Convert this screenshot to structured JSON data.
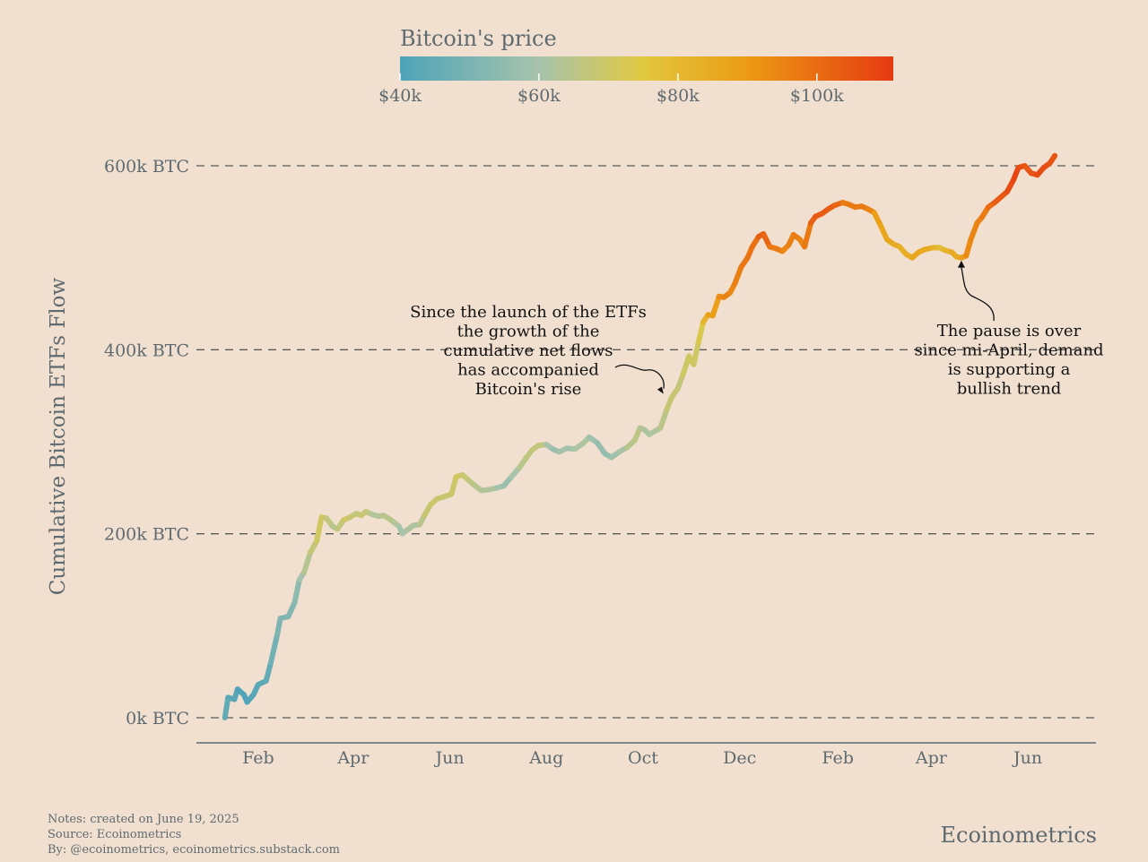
{
  "chart_data": {
    "type": "line",
    "colorbar": {
      "title": "Bitcoin's price",
      "tick_labels": [
        "$40k",
        "$60k",
        "$80k",
        "$100k"
      ],
      "tick_values": [
        40000,
        60000,
        80000,
        100000
      ],
      "range": [
        40000,
        111000
      ],
      "color_stops": [
        {
          "value": 40000,
          "color": "#4ea3b8"
        },
        {
          "value": 60000,
          "color": "#a7c3ac"
        },
        {
          "value": 75000,
          "color": "#e1c940"
        },
        {
          "value": 90000,
          "color": "#ec9a14"
        },
        {
          "value": 111000,
          "color": "#e63a12"
        }
      ]
    },
    "ylabel": "Cumulative Bitcoin ETFs Flow",
    "y_ticks": [
      {
        "value": 0,
        "label": "0k BTC"
      },
      {
        "value": 200000,
        "label": "200k BTC"
      },
      {
        "value": 400000,
        "label": "400k BTC"
      },
      {
        "value": 600000,
        "label": "600k BTC"
      }
    ],
    "ylim": [
      -28000,
      640000
    ],
    "xlim": [
      "2023-12-24",
      "2025-07-14"
    ],
    "x_ticks": [
      {
        "date": "2024-02-01",
        "label": "Feb"
      },
      {
        "date": "2024-04-01",
        "label": "Apr"
      },
      {
        "date": "2024-06-01",
        "label": "Jun"
      },
      {
        "date": "2024-08-01",
        "label": "Aug"
      },
      {
        "date": "2024-10-01",
        "label": "Oct"
      },
      {
        "date": "2024-12-01",
        "label": "Dec"
      },
      {
        "date": "2025-02-01",
        "label": "Feb"
      },
      {
        "date": "2025-04-01",
        "label": "Apr"
      },
      {
        "date": "2025-06-01",
        "label": "Jun"
      }
    ],
    "grid": "horizontal-dashed",
    "series": [
      {
        "points": [
          {
            "date": "2024-01-11",
            "btc": 0,
            "price": 46000
          },
          {
            "date": "2024-01-13",
            "btc": 22000,
            "price": 43000
          },
          {
            "date": "2024-01-17",
            "btc": 20000,
            "price": 42500
          },
          {
            "date": "2024-01-19",
            "btc": 31000,
            "price": 41500
          },
          {
            "date": "2024-01-23",
            "btc": 25000,
            "price": 40000
          },
          {
            "date": "2024-01-25",
            "btc": 17000,
            "price": 40500
          },
          {
            "date": "2024-01-29",
            "btc": 25000,
            "price": 42000
          },
          {
            "date": "2024-02-01",
            "btc": 36000,
            "price": 43000
          },
          {
            "date": "2024-02-06",
            "btc": 40000,
            "price": 43000
          },
          {
            "date": "2024-02-09",
            "btc": 60000,
            "price": 47000
          },
          {
            "date": "2024-02-13",
            "btc": 90000,
            "price": 49500
          },
          {
            "date": "2024-02-15",
            "btc": 108000,
            "price": 52000
          },
          {
            "date": "2024-02-20",
            "btc": 110000,
            "price": 52000
          },
          {
            "date": "2024-02-24",
            "btc": 125000,
            "price": 51500
          },
          {
            "date": "2024-02-27",
            "btc": 150000,
            "price": 57000
          },
          {
            "date": "2024-03-01",
            "btc": 158000,
            "price": 62000
          },
          {
            "date": "2024-03-05",
            "btc": 180000,
            "price": 66000
          },
          {
            "date": "2024-03-09",
            "btc": 192000,
            "price": 68500
          },
          {
            "date": "2024-03-12",
            "btc": 218000,
            "price": 72000
          },
          {
            "date": "2024-03-15",
            "btc": 217000,
            "price": 69000
          },
          {
            "date": "2024-03-19",
            "btc": 208000,
            "price": 64000
          },
          {
            "date": "2024-03-22",
            "btc": 205000,
            "price": 64000
          },
          {
            "date": "2024-03-26",
            "btc": 215000,
            "price": 70000
          },
          {
            "date": "2024-03-30",
            "btc": 218000,
            "price": 69500
          },
          {
            "date": "2024-04-03",
            "btc": 222000,
            "price": 66000
          },
          {
            "date": "2024-04-06",
            "btc": 220000,
            "price": 68000
          },
          {
            "date": "2024-04-09",
            "btc": 224000,
            "price": 69000
          },
          {
            "date": "2024-04-13",
            "btc": 221000,
            "price": 64000
          },
          {
            "date": "2024-04-17",
            "btc": 219000,
            "price": 61000
          },
          {
            "date": "2024-04-20",
            "btc": 220000,
            "price": 64500
          },
          {
            "date": "2024-04-24",
            "btc": 216000,
            "price": 65000
          },
          {
            "date": "2024-04-27",
            "btc": 212000,
            "price": 63500
          },
          {
            "date": "2024-04-30",
            "btc": 208000,
            "price": 62000
          },
          {
            "date": "2024-05-02",
            "btc": 200000,
            "price": 58000
          },
          {
            "date": "2024-05-05",
            "btc": 204000,
            "price": 63000
          },
          {
            "date": "2024-05-09",
            "btc": 209000,
            "price": 61000
          },
          {
            "date": "2024-05-13",
            "btc": 210000,
            "price": 62500
          },
          {
            "date": "2024-05-16",
            "btc": 220000,
            "price": 66000
          },
          {
            "date": "2024-05-20",
            "btc": 232000,
            "price": 70000
          },
          {
            "date": "2024-05-24",
            "btc": 238000,
            "price": 68000
          },
          {
            "date": "2024-05-28",
            "btc": 240000,
            "price": 68500
          },
          {
            "date": "2024-06-02",
            "btc": 243000,
            "price": 68000
          },
          {
            "date": "2024-06-05",
            "btc": 262000,
            "price": 71000
          },
          {
            "date": "2024-06-09",
            "btc": 264000,
            "price": 69500
          },
          {
            "date": "2024-06-13",
            "btc": 258000,
            "price": 67000
          },
          {
            "date": "2024-06-17",
            "btc": 252000,
            "price": 65000
          },
          {
            "date": "2024-06-21",
            "btc": 247000,
            "price": 64000
          },
          {
            "date": "2024-06-26",
            "btc": 248000,
            "price": 61500
          },
          {
            "date": "2024-07-01",
            "btc": 250000,
            "price": 62500
          },
          {
            "date": "2024-07-05",
            "btc": 252000,
            "price": 56000
          },
          {
            "date": "2024-07-10",
            "btc": 262000,
            "price": 58000
          },
          {
            "date": "2024-07-15",
            "btc": 272000,
            "price": 63000
          },
          {
            "date": "2024-07-19",
            "btc": 282000,
            "price": 66000
          },
          {
            "date": "2024-07-23",
            "btc": 291000,
            "price": 66500
          },
          {
            "date": "2024-07-27",
            "btc": 296000,
            "price": 67500
          },
          {
            "date": "2024-08-01",
            "btc": 297000,
            "price": 65000
          },
          {
            "date": "2024-08-05",
            "btc": 292000,
            "price": 54000
          },
          {
            "date": "2024-08-09",
            "btc": 289000,
            "price": 60000
          },
          {
            "date": "2024-08-14",
            "btc": 293000,
            "price": 59000
          },
          {
            "date": "2024-08-19",
            "btc": 292000,
            "price": 58500
          },
          {
            "date": "2024-08-24",
            "btc": 298000,
            "price": 64000
          },
          {
            "date": "2024-08-28",
            "btc": 305000,
            "price": 59500
          },
          {
            "date": "2024-09-02",
            "btc": 299000,
            "price": 58000
          },
          {
            "date": "2024-09-07",
            "btc": 287000,
            "price": 54500
          },
          {
            "date": "2024-09-11",
            "btc": 283000,
            "price": 57500
          },
          {
            "date": "2024-09-16",
            "btc": 289000,
            "price": 58500
          },
          {
            "date": "2024-09-21",
            "btc": 294000,
            "price": 63000
          },
          {
            "date": "2024-09-26",
            "btc": 302000,
            "price": 65500
          },
          {
            "date": "2024-09-29",
            "btc": 315000,
            "price": 65500
          },
          {
            "date": "2024-10-02",
            "btc": 313000,
            "price": 61000
          },
          {
            "date": "2024-10-05",
            "btc": 308000,
            "price": 62000
          },
          {
            "date": "2024-10-09",
            "btc": 312000,
            "price": 61500
          },
          {
            "date": "2024-10-12",
            "btc": 315000,
            "price": 63000
          },
          {
            "date": "2024-10-16",
            "btc": 335000,
            "price": 67500
          },
          {
            "date": "2024-10-19",
            "btc": 348000,
            "price": 68500
          },
          {
            "date": "2024-10-23",
            "btc": 358000,
            "price": 67000
          },
          {
            "date": "2024-10-26",
            "btc": 372000,
            "price": 67500
          },
          {
            "date": "2024-10-30",
            "btc": 393000,
            "price": 72000
          },
          {
            "date": "2024-11-02",
            "btc": 384000,
            "price": 69500
          },
          {
            "date": "2024-11-05",
            "btc": 408000,
            "price": 70000
          },
          {
            "date": "2024-11-08",
            "btc": 430000,
            "price": 76500
          },
          {
            "date": "2024-11-11",
            "btc": 438000,
            "price": 88000
          },
          {
            "date": "2024-11-14",
            "btc": 437000,
            "price": 87000
          },
          {
            "date": "2024-11-18",
            "btc": 458000,
            "price": 90500
          },
          {
            "date": "2024-11-21",
            "btc": 457000,
            "price": 98000
          },
          {
            "date": "2024-11-25",
            "btc": 462000,
            "price": 93000
          },
          {
            "date": "2024-11-28",
            "btc": 472000,
            "price": 95500
          },
          {
            "date": "2024-12-02",
            "btc": 490000,
            "price": 96000
          },
          {
            "date": "2024-12-06",
            "btc": 500000,
            "price": 99500
          },
          {
            "date": "2024-12-09",
            "btc": 512000,
            "price": 97000
          },
          {
            "date": "2024-12-13",
            "btc": 523000,
            "price": 101000
          },
          {
            "date": "2024-12-16",
            "btc": 526000,
            "price": 106000
          },
          {
            "date": "2024-12-20",
            "btc": 512000,
            "price": 97000
          },
          {
            "date": "2024-12-24",
            "btc": 510000,
            "price": 98500
          },
          {
            "date": "2024-12-28",
            "btc": 507000,
            "price": 94500
          },
          {
            "date": "2025-01-01",
            "btc": 514000,
            "price": 94000
          },
          {
            "date": "2025-01-04",
            "btc": 525000,
            "price": 98000
          },
          {
            "date": "2025-01-08",
            "btc": 520000,
            "price": 95000
          },
          {
            "date": "2025-01-11",
            "btc": 512000,
            "price": 94500
          },
          {
            "date": "2025-01-15",
            "btc": 538000,
            "price": 100500
          },
          {
            "date": "2025-01-18",
            "btc": 545000,
            "price": 104500
          },
          {
            "date": "2025-01-22",
            "btc": 548000,
            "price": 104000
          },
          {
            "date": "2025-01-26",
            "btc": 553000,
            "price": 102500
          },
          {
            "date": "2025-01-30",
            "btc": 557000,
            "price": 104500
          },
          {
            "date": "2025-02-04",
            "btc": 560000,
            "price": 98000
          },
          {
            "date": "2025-02-08",
            "btc": 558000,
            "price": 96000
          },
          {
            "date": "2025-02-12",
            "btc": 555000,
            "price": 97500
          },
          {
            "date": "2025-02-16",
            "btc": 556000,
            "price": 96000
          },
          {
            "date": "2025-02-20",
            "btc": 553000,
            "price": 98000
          },
          {
            "date": "2025-02-24",
            "btc": 549000,
            "price": 92000
          },
          {
            "date": "2025-02-28",
            "btc": 535000,
            "price": 85000
          },
          {
            "date": "2025-03-04",
            "btc": 520000,
            "price": 87000
          },
          {
            "date": "2025-03-08",
            "btc": 515000,
            "price": 86000
          },
          {
            "date": "2025-03-12",
            "btc": 512000,
            "price": 83000
          },
          {
            "date": "2025-03-16",
            "btc": 504000,
            "price": 84000
          },
          {
            "date": "2025-03-20",
            "btc": 500000,
            "price": 84000
          },
          {
            "date": "2025-03-24",
            "btc": 506000,
            "price": 87500
          },
          {
            "date": "2025-03-28",
            "btc": 509000,
            "price": 84500
          },
          {
            "date": "2025-04-02",
            "btc": 511000,
            "price": 85000
          },
          {
            "date": "2025-04-06",
            "btc": 511000,
            "price": 79000
          },
          {
            "date": "2025-04-10",
            "btc": 508000,
            "price": 79500
          },
          {
            "date": "2025-04-14",
            "btc": 506000,
            "price": 84500
          },
          {
            "date": "2025-04-17",
            "btc": 501000,
            "price": 84500
          },
          {
            "date": "2025-04-20",
            "btc": 500000,
            "price": 85000
          },
          {
            "date": "2025-04-23",
            "btc": 502000,
            "price": 92000
          },
          {
            "date": "2025-04-26",
            "btc": 520000,
            "price": 94500
          },
          {
            "date": "2025-04-30",
            "btc": 538000,
            "price": 94500
          },
          {
            "date": "2025-05-03",
            "btc": 544000,
            "price": 96000
          },
          {
            "date": "2025-05-07",
            "btc": 555000,
            "price": 97000
          },
          {
            "date": "2025-05-11",
            "btc": 560000,
            "price": 104000
          },
          {
            "date": "2025-05-15",
            "btc": 566000,
            "price": 103500
          },
          {
            "date": "2025-05-19",
            "btc": 572000,
            "price": 105500
          },
          {
            "date": "2025-05-23",
            "btc": 585000,
            "price": 108000
          },
          {
            "date": "2025-05-26",
            "btc": 598000,
            "price": 109500
          },
          {
            "date": "2025-05-30",
            "btc": 600000,
            "price": 104000
          },
          {
            "date": "2025-06-03",
            "btc": 592000,
            "price": 105500
          },
          {
            "date": "2025-06-07",
            "btc": 590000,
            "price": 105500
          },
          {
            "date": "2025-06-11",
            "btc": 598000,
            "price": 108500
          },
          {
            "date": "2025-06-15",
            "btc": 603000,
            "price": 105500
          },
          {
            "date": "2025-06-18",
            "btc": 611000,
            "price": 104500
          }
        ]
      }
    ],
    "annotations": [
      {
        "lines": [
          "Since the launch of the ETFs",
          "the growth of the",
          "cumulative net flows",
          "has accompanied",
          "Bitcoin's rise"
        ],
        "arrow_to": {
          "date": "2024-10-14",
          "btc": 352000
        }
      },
      {
        "lines": [
          "The pause is over",
          "since mi-April, demand",
          "is supporting a",
          "bullish trend"
        ],
        "arrow_to": {
          "date": "2025-04-20",
          "btc": 497000
        }
      }
    ]
  },
  "footer": {
    "notes": "Notes: created on June 19, 2025",
    "source": "Source: Ecoinometrics",
    "by": "By: @ecoinometrics, ecoinometrics.substack.com",
    "brand": "Ecoinometrics"
  },
  "colors": {
    "background": "#f1e0d0",
    "text": "#5e6a70",
    "grid": "#5a5a5a"
  }
}
